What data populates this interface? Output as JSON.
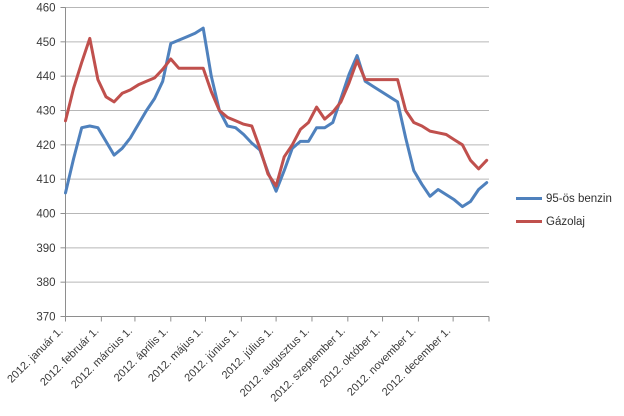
{
  "chart_data": {
    "type": "line",
    "title": "",
    "xlabel": "",
    "ylabel": "",
    "ylim": [
      370,
      460
    ],
    "y_ticks": [
      460,
      450,
      440,
      430,
      420,
      410,
      400,
      390,
      380,
      370
    ],
    "grid": true,
    "legend_position": "right",
    "x_axis_span_days": 366,
    "x_start_day": 0,
    "x_step_days": 7,
    "x_tick_days": [
      0,
      31,
      60,
      91,
      121,
      152,
      182,
      213,
      244,
      274,
      305,
      335
    ],
    "x_tick_labels": [
      "2012. január 1.",
      "2012. február 1.",
      "2012. március 1.",
      "2012. április 1.",
      "2012. május 1.",
      "2012. június 1.",
      "2012. július 1.",
      "2012. augusztus 1.",
      "2012. szeptember 1.",
      "2012. október 1.",
      "2012. november 1.",
      "2012. december 1."
    ],
    "series": [
      {
        "name": "95-ös benzin",
        "color": "#4F81BD",
        "values": [
          406,
          416,
          425,
          425.5,
          425,
          421,
          417,
          419,
          422,
          426,
          430,
          433.5,
          438.5,
          449.5,
          450.5,
          451.5,
          452.5,
          454,
          440,
          430,
          425.5,
          425,
          423,
          420.5,
          418.5,
          412,
          406.5,
          412.5,
          419,
          421,
          421,
          425,
          425,
          426.5,
          433.5,
          440.5,
          446,
          438.5,
          437,
          435.5,
          434,
          432.5,
          422,
          412.5,
          408.5,
          405,
          407,
          405.5,
          404,
          402,
          403.5,
          407,
          409
        ]
      },
      {
        "name": "Gázolaj",
        "color": "#C0504D",
        "values": [
          427,
          436.5,
          444,
          451,
          439,
          434,
          432.5,
          435,
          436,
          437.5,
          438.5,
          439.5,
          442,
          445,
          442.3,
          442.3,
          442.3,
          442.3,
          435.5,
          430,
          428,
          427,
          426,
          425.5,
          419,
          411.5,
          408,
          416.5,
          420,
          424.5,
          426.5,
          431,
          427.5,
          429.5,
          432.5,
          438,
          444.5,
          439,
          439,
          439,
          439,
          439,
          430,
          426.5,
          425.5,
          424,
          423.5,
          423,
          421.5,
          420,
          415.5,
          413,
          415.5
        ]
      }
    ],
    "colors": {
      "gridline": "#b7b7b7",
      "axis": "#8e8e8e",
      "tick": "#8e8e8e",
      "axis_label_text": "#3a3a3a"
    }
  },
  "legend": {
    "items": [
      {
        "label": "95-ös benzin",
        "color": "#4F81BD"
      },
      {
        "label": "Gázolaj",
        "color": "#C0504D"
      }
    ]
  }
}
